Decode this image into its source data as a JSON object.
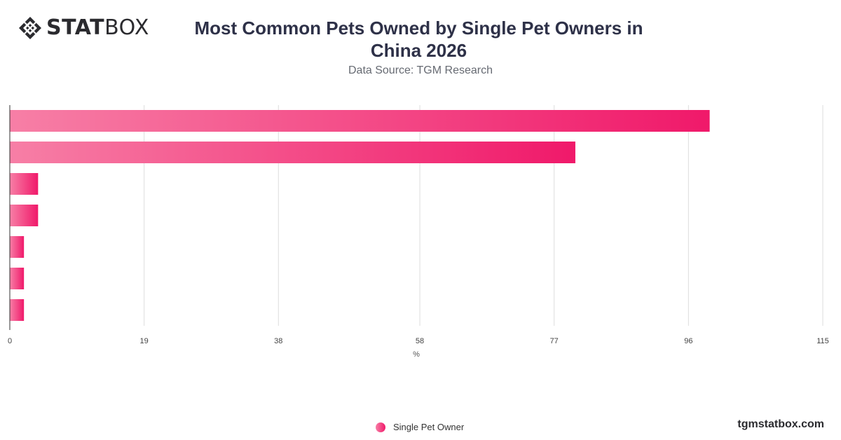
{
  "brand": {
    "logo_bold": "STAT",
    "logo_light": "BOX",
    "logo_icon": "diamond-grid-icon",
    "site": "tgmstatbox.com"
  },
  "chart_data": {
    "type": "bar",
    "orientation": "horizontal",
    "title": "Most Common Pets Owned by Single Pet Owners in China 2026",
    "subtitle": "Data Source: TGM Research",
    "xlabel": "%",
    "ylabel": "",
    "xlim": [
      0,
      115
    ],
    "xticks": [
      0,
      19,
      38,
      58,
      77,
      96,
      115
    ],
    "categories": [
      "",
      "",
      "",
      "",
      "",
      "",
      ""
    ],
    "series": [
      {
        "name": "Single Pet Owner",
        "values": [
          99,
          80,
          4,
          4,
          2,
          2,
          2
        ]
      }
    ],
    "grid": true,
    "legend": "bottom-center",
    "colors": {
      "bar_start": "#f77fa6",
      "bar_end": "#f0196a",
      "grid": "#dddddd",
      "axis": "#333333"
    }
  }
}
